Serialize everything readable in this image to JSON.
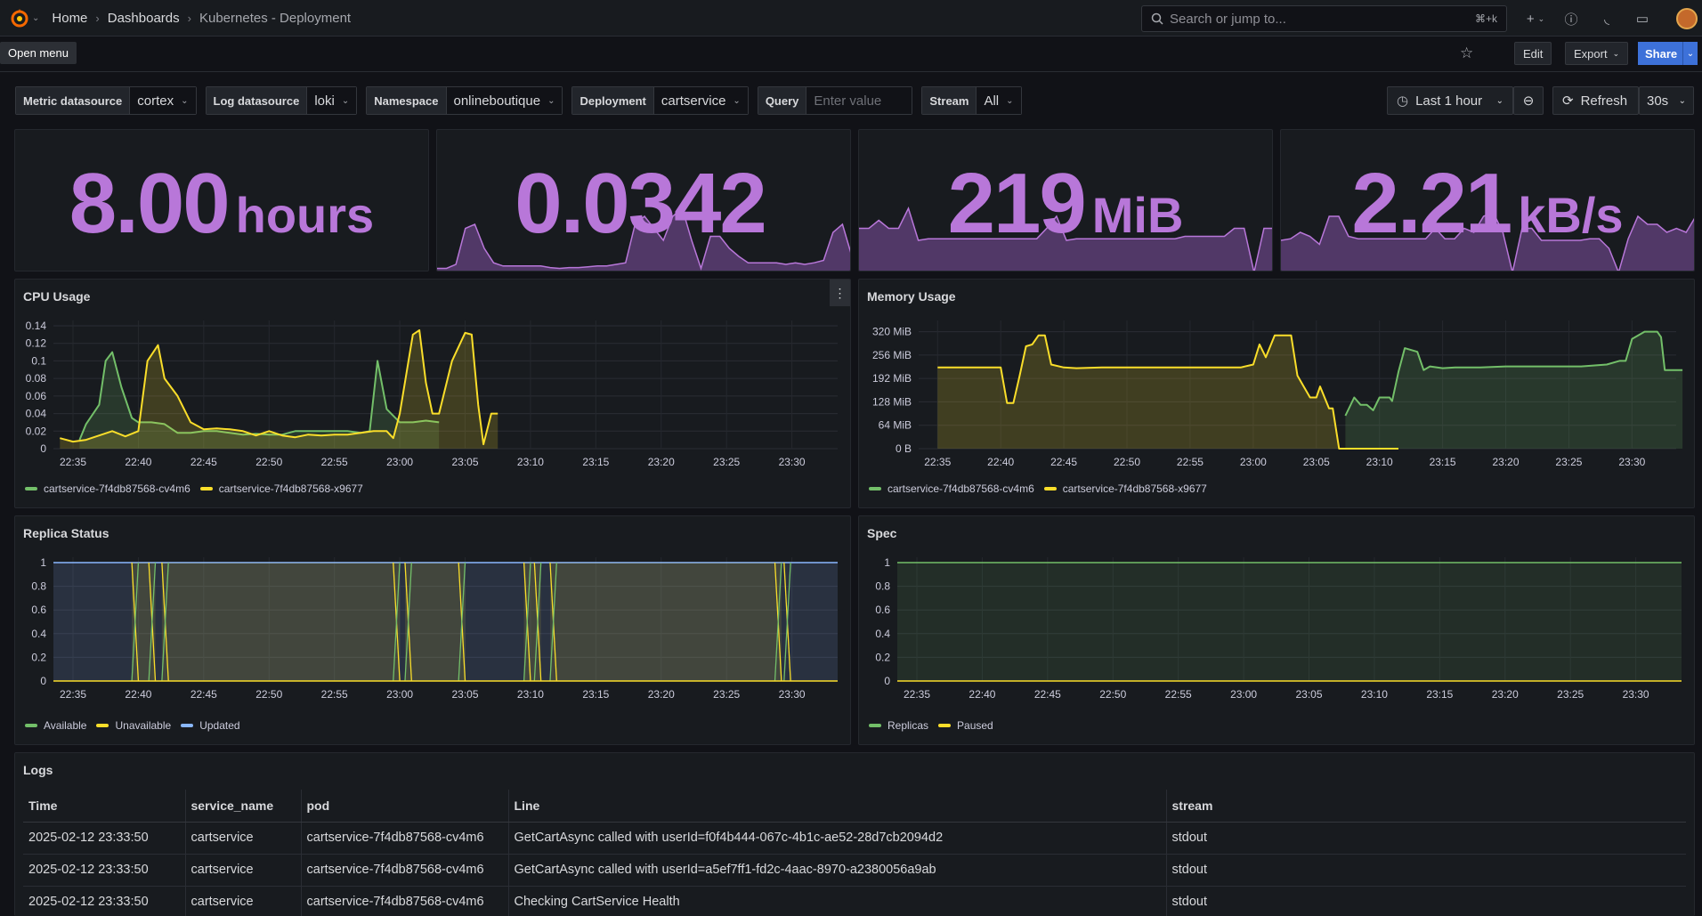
{
  "nav": {
    "breadcrumbs": [
      "Home",
      "Dashboards",
      "Kubernetes - Deployment"
    ],
    "search_placeholder": "Search or jump to...",
    "search_shortcut": "⌘+k",
    "tooltip": "Open menu"
  },
  "toolbar": {
    "edit_label": "Edit",
    "export_label": "Export",
    "share_label": "Share"
  },
  "variables": [
    {
      "label": "Metric datasource",
      "value": "cortex"
    },
    {
      "label": "Log datasource",
      "value": "loki"
    },
    {
      "label": "Namespace",
      "value": "onlineboutique"
    },
    {
      "label": "Deployment",
      "value": "cartservice"
    },
    {
      "label": "Query",
      "placeholder": "Enter value"
    },
    {
      "label": "Stream",
      "value": "All"
    }
  ],
  "time": {
    "range": "Last 1 hour",
    "refresh_label": "Refresh",
    "interval": "30s"
  },
  "stats": [
    {
      "value": "8.00",
      "unit": "hours",
      "spark": []
    },
    {
      "value": "0.0342",
      "unit": "",
      "spark": [
        0.05,
        0.05,
        0.1,
        0.55,
        0.6,
        0.3,
        0.12,
        0.08,
        0.08,
        0.08,
        0.08,
        0.08,
        0.06,
        0.05,
        0.06,
        0.06,
        0.07,
        0.08,
        0.08,
        0.1,
        0.12,
        0.6,
        0.7,
        0.55,
        0.4,
        0.7,
        0.8,
        0.4,
        0.05,
        0.45,
        0.45,
        0.3,
        0.2,
        0.12,
        0.12,
        0.12,
        0.12,
        0.1,
        0.12,
        0.1,
        0.12,
        0.15,
        0.5,
        0.6,
        0.2
      ]
    },
    {
      "value": "219",
      "unit": "MiB",
      "spark": [
        0.55,
        0.55,
        0.65,
        0.55,
        0.55,
        0.8,
        0.4,
        0.42,
        0.42,
        0.42,
        0.42,
        0.42,
        0.42,
        0.42,
        0.42,
        0.42,
        0.42,
        0.42,
        0.42,
        0.55,
        0.7,
        0.4,
        0.42,
        0.42,
        0.42,
        0.42,
        0.42,
        0.42,
        0.42,
        0.42,
        0.42,
        0.42,
        0.42,
        0.45,
        0.45,
        0.45,
        0.45,
        0.45,
        0.55,
        0.55,
        0.0,
        0.55,
        0.55
      ]
    },
    {
      "value": "2.21",
      "unit": "kB/s",
      "spark": [
        0.4,
        0.42,
        0.5,
        0.45,
        0.35,
        0.7,
        0.7,
        0.45,
        0.42,
        0.42,
        0.42,
        0.42,
        0.42,
        0.42,
        0.42,
        0.42,
        0.55,
        0.42,
        0.42,
        0.55,
        0.5,
        0.7,
        0.75,
        0.5,
        0.0,
        0.55,
        0.55,
        0.4,
        0.4,
        0.4,
        0.4,
        0.4,
        0.42,
        0.42,
        0.3,
        0.0,
        0.42,
        0.7,
        0.6,
        0.6,
        0.5,
        0.55,
        0.5,
        0.7
      ]
    }
  ],
  "cpu": {
    "title": "CPU Usage",
    "ylim": [
      0,
      0.14
    ],
    "yticks": [
      "0",
      "0.02",
      "0.04",
      "0.06",
      "0.08",
      "0.1",
      "0.12",
      "0.14"
    ],
    "xticks": [
      "22:35",
      "22:40",
      "22:45",
      "22:50",
      "22:55",
      "23:00",
      "23:05",
      "23:10",
      "23:15",
      "23:20",
      "23:25",
      "23:30"
    ],
    "series": [
      {
        "name": "cartservice-7f4db87568-cv4m6",
        "color": "#73bf69",
        "points": [
          [
            35.5,
            0.01
          ],
          [
            36,
            0.028
          ],
          [
            37,
            0.05
          ],
          [
            37.5,
            0.1
          ],
          [
            38,
            0.11
          ],
          [
            38.7,
            0.07
          ],
          [
            39.5,
            0.035
          ],
          [
            40,
            0.03
          ],
          [
            41,
            0.03
          ],
          [
            42,
            0.028
          ],
          [
            43,
            0.018
          ],
          [
            44,
            0.018
          ],
          [
            45,
            0.02
          ],
          [
            46,
            0.02
          ],
          [
            47,
            0.018
          ],
          [
            48,
            0.016
          ],
          [
            49,
            0.017
          ],
          [
            50,
            0.016
          ],
          [
            51,
            0.016
          ],
          [
            52,
            0.02
          ],
          [
            53,
            0.02
          ],
          [
            54,
            0.02
          ],
          [
            55,
            0.02
          ],
          [
            56,
            0.02
          ],
          [
            57,
            0.018
          ],
          [
            57.7,
            0.02
          ],
          [
            58.3,
            0.1
          ],
          [
            59,
            0.045
          ],
          [
            60,
            0.03
          ],
          [
            61,
            0.03
          ],
          [
            62,
            0.032
          ],
          [
            63,
            0.03
          ]
        ]
      },
      {
        "name": "cartservice-7f4db87568-x9677",
        "color": "#fade2a",
        "points": [
          [
            34,
            0.012
          ],
          [
            35,
            0.008
          ],
          [
            36,
            0.01
          ],
          [
            37,
            0.015
          ],
          [
            38,
            0.02
          ],
          [
            39,
            0.014
          ],
          [
            40,
            0.02
          ],
          [
            40.7,
            0.1
          ],
          [
            41.5,
            0.118
          ],
          [
            42,
            0.08
          ],
          [
            43,
            0.06
          ],
          [
            44,
            0.03
          ],
          [
            45,
            0.022
          ],
          [
            46,
            0.023
          ],
          [
            47,
            0.022
          ],
          [
            48,
            0.02
          ],
          [
            49,
            0.015
          ],
          [
            50,
            0.02
          ],
          [
            51,
            0.015
          ],
          [
            52,
            0.013
          ],
          [
            53,
            0.016
          ],
          [
            54,
            0.015
          ],
          [
            55,
            0.016
          ],
          [
            56,
            0.016
          ],
          [
            57,
            0.018
          ],
          [
            58,
            0.02
          ],
          [
            59,
            0.02
          ],
          [
            59.5,
            0.012
          ],
          [
            60,
            0.04
          ],
          [
            61,
            0.13
          ],
          [
            61.5,
            0.135
          ],
          [
            62,
            0.075
          ],
          [
            62.5,
            0.04
          ],
          [
            63,
            0.04
          ],
          [
            64,
            0.1
          ],
          [
            65,
            0.132
          ],
          [
            65.5,
            0.13
          ],
          [
            66,
            0.05
          ],
          [
            66.4,
            0.005
          ],
          [
            67,
            0.04
          ],
          [
            67.5,
            0.04
          ]
        ]
      }
    ]
  },
  "memory": {
    "title": "Memory Usage",
    "ylim": [
      0,
      336
    ],
    "yticks": [
      "0 B",
      "64 MiB",
      "128 MiB",
      "192 MiB",
      "256 MiB",
      "320 MiB"
    ],
    "xticks": [
      "22:35",
      "22:40",
      "22:45",
      "22:50",
      "22:55",
      "23:00",
      "23:05",
      "23:10",
      "23:15",
      "23:20",
      "23:25",
      "23:30"
    ],
    "series": [
      {
        "name": "cartservice-7f4db87568-cv4m6",
        "color": "#73bf69",
        "points": [
          [
            67.3,
            90
          ],
          [
            68,
            140
          ],
          [
            68.5,
            120
          ],
          [
            69,
            120
          ],
          [
            69.5,
            105
          ],
          [
            70,
            140
          ],
          [
            70.8,
            140
          ],
          [
            71,
            130
          ],
          [
            71.5,
            210
          ],
          [
            72,
            275
          ],
          [
            73,
            265
          ],
          [
            73.5,
            215
          ],
          [
            74,
            225
          ],
          [
            75,
            220
          ],
          [
            76,
            222
          ],
          [
            78,
            222
          ],
          [
            80,
            225
          ],
          [
            82,
            225
          ],
          [
            84,
            225
          ],
          [
            86,
            225
          ],
          [
            88,
            230
          ],
          [
            89,
            240
          ],
          [
            89.5,
            240
          ],
          [
            90,
            300
          ],
          [
            91,
            320
          ],
          [
            92,
            320
          ],
          [
            92.3,
            305
          ],
          [
            92.6,
            215
          ],
          [
            94,
            215
          ]
        ]
      },
      {
        "name": "cartservice-7f4db87568-x9677",
        "color": "#fade2a",
        "points": [
          [
            35,
            222
          ],
          [
            36,
            222
          ],
          [
            38,
            222
          ],
          [
            40,
            222
          ],
          [
            40.5,
            125
          ],
          [
            41,
            125
          ],
          [
            41.5,
            200
          ],
          [
            42,
            280
          ],
          [
            42.5,
            285
          ],
          [
            43,
            310
          ],
          [
            43.5,
            310
          ],
          [
            44,
            230
          ],
          [
            45,
            222
          ],
          [
            46,
            220
          ],
          [
            48,
            222
          ],
          [
            50,
            222
          ],
          [
            52,
            222
          ],
          [
            54,
            222
          ],
          [
            56,
            222
          ],
          [
            58,
            222
          ],
          [
            59,
            222
          ],
          [
            60,
            230
          ],
          [
            60.5,
            285
          ],
          [
            61,
            250
          ],
          [
            61.7,
            310
          ],
          [
            62,
            310
          ],
          [
            63,
            310
          ],
          [
            63.5,
            200
          ],
          [
            64,
            170
          ],
          [
            64.5,
            140
          ],
          [
            65,
            140
          ],
          [
            65.3,
            170
          ],
          [
            66,
            110
          ],
          [
            66.3,
            110
          ],
          [
            66.8,
            0
          ],
          [
            67,
            0
          ],
          [
            68,
            0
          ],
          [
            69,
            0
          ],
          [
            70,
            0
          ],
          [
            71,
            0
          ],
          [
            71.5,
            0
          ]
        ]
      }
    ]
  },
  "replica": {
    "title": "Replica Status",
    "ylim": [
      0,
      1
    ],
    "yticks": [
      "0",
      "0.2",
      "0.4",
      "0.6",
      "0.8",
      "1"
    ],
    "xticks": [
      "22:35",
      "22:40",
      "22:45",
      "22:50",
      "22:55",
      "23:00",
      "23:05",
      "23:10",
      "23:15",
      "23:20",
      "23:25",
      "23:30"
    ],
    "series": [
      {
        "name": "Available",
        "color": "#73bf69"
      },
      {
        "name": "Unavailable",
        "color": "#fade2a"
      },
      {
        "name": "Updated",
        "color": "#8ab8ff"
      }
    ],
    "transitions": [
      [
        39.5,
        40.0
      ],
      [
        40.8,
        41.3
      ],
      [
        41.8,
        42.3
      ],
      [
        59.5,
        60.0
      ],
      [
        60.4,
        60.9
      ],
      [
        64.5,
        65.0
      ],
      [
        69.5,
        70.0
      ],
      [
        70.3,
        70.8
      ],
      [
        71.5,
        72.0
      ],
      [
        88.7,
        89.2
      ],
      [
        89.4,
        89.9
      ]
    ]
  },
  "spec": {
    "title": "Spec",
    "ylim": [
      0,
      1
    ],
    "yticks": [
      "0",
      "0.2",
      "0.4",
      "0.6",
      "0.8",
      "1"
    ],
    "xticks": [
      "22:35",
      "22:40",
      "22:45",
      "22:50",
      "22:55",
      "23:00",
      "23:05",
      "23:10",
      "23:15",
      "23:20",
      "23:25",
      "23:30"
    ],
    "series": [
      {
        "name": "Replicas",
        "color": "#73bf69"
      },
      {
        "name": "Paused",
        "color": "#fade2a"
      }
    ]
  },
  "logs": {
    "title": "Logs",
    "columns": [
      "Time",
      "service_name",
      "pod",
      "Line",
      "stream"
    ],
    "rows": [
      [
        "2025-02-12 23:33:50",
        "cartservice",
        "cartservice-7f4db87568-cv4m6",
        "GetCartAsync called with userId=f0f4b444-067c-4b1c-ae52-28d7cb2094d2",
        "stdout"
      ],
      [
        "2025-02-12 23:33:50",
        "cartservice",
        "cartservice-7f4db87568-cv4m6",
        "GetCartAsync called with userId=a5ef7ff1-fd2c-4aac-8970-a2380056a9ab",
        "stdout"
      ],
      [
        "2025-02-12 23:33:50",
        "cartservice",
        "cartservice-7f4db87568-cv4m6",
        "Checking CartService Health",
        "stdout"
      ]
    ]
  }
}
